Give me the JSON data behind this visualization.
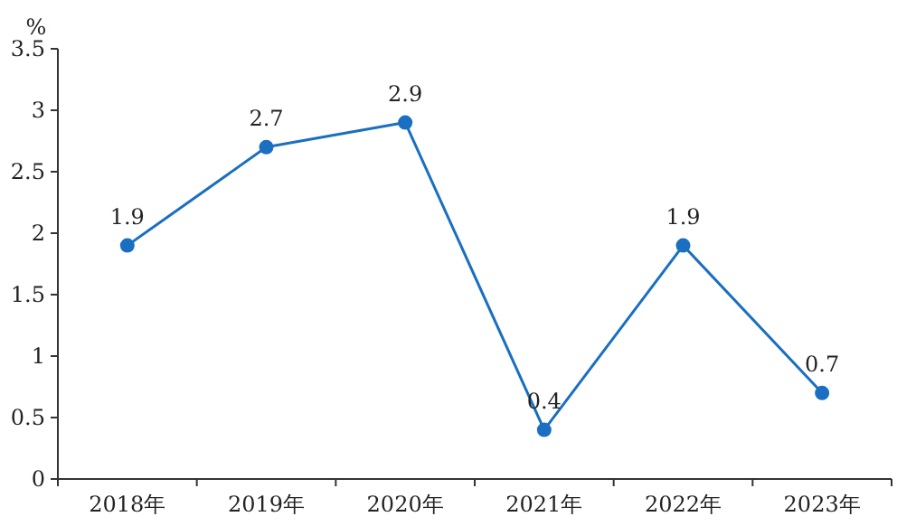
{
  "chart_data": {
    "type": "line",
    "ylabel": "%",
    "categories": [
      "2018年",
      "2019年",
      "2020年",
      "2021年",
      "2022年",
      "2023年"
    ],
    "values": [
      1.9,
      2.7,
      2.9,
      0.4,
      1.9,
      0.7
    ],
    "color": "#1a6fc0",
    "marker": "circle",
    "data_labels": true,
    "ylim": [
      0,
      3.5
    ],
    "yticks": [
      0,
      0.5,
      1,
      1.5,
      2,
      2.5,
      3,
      3.5
    ]
  }
}
